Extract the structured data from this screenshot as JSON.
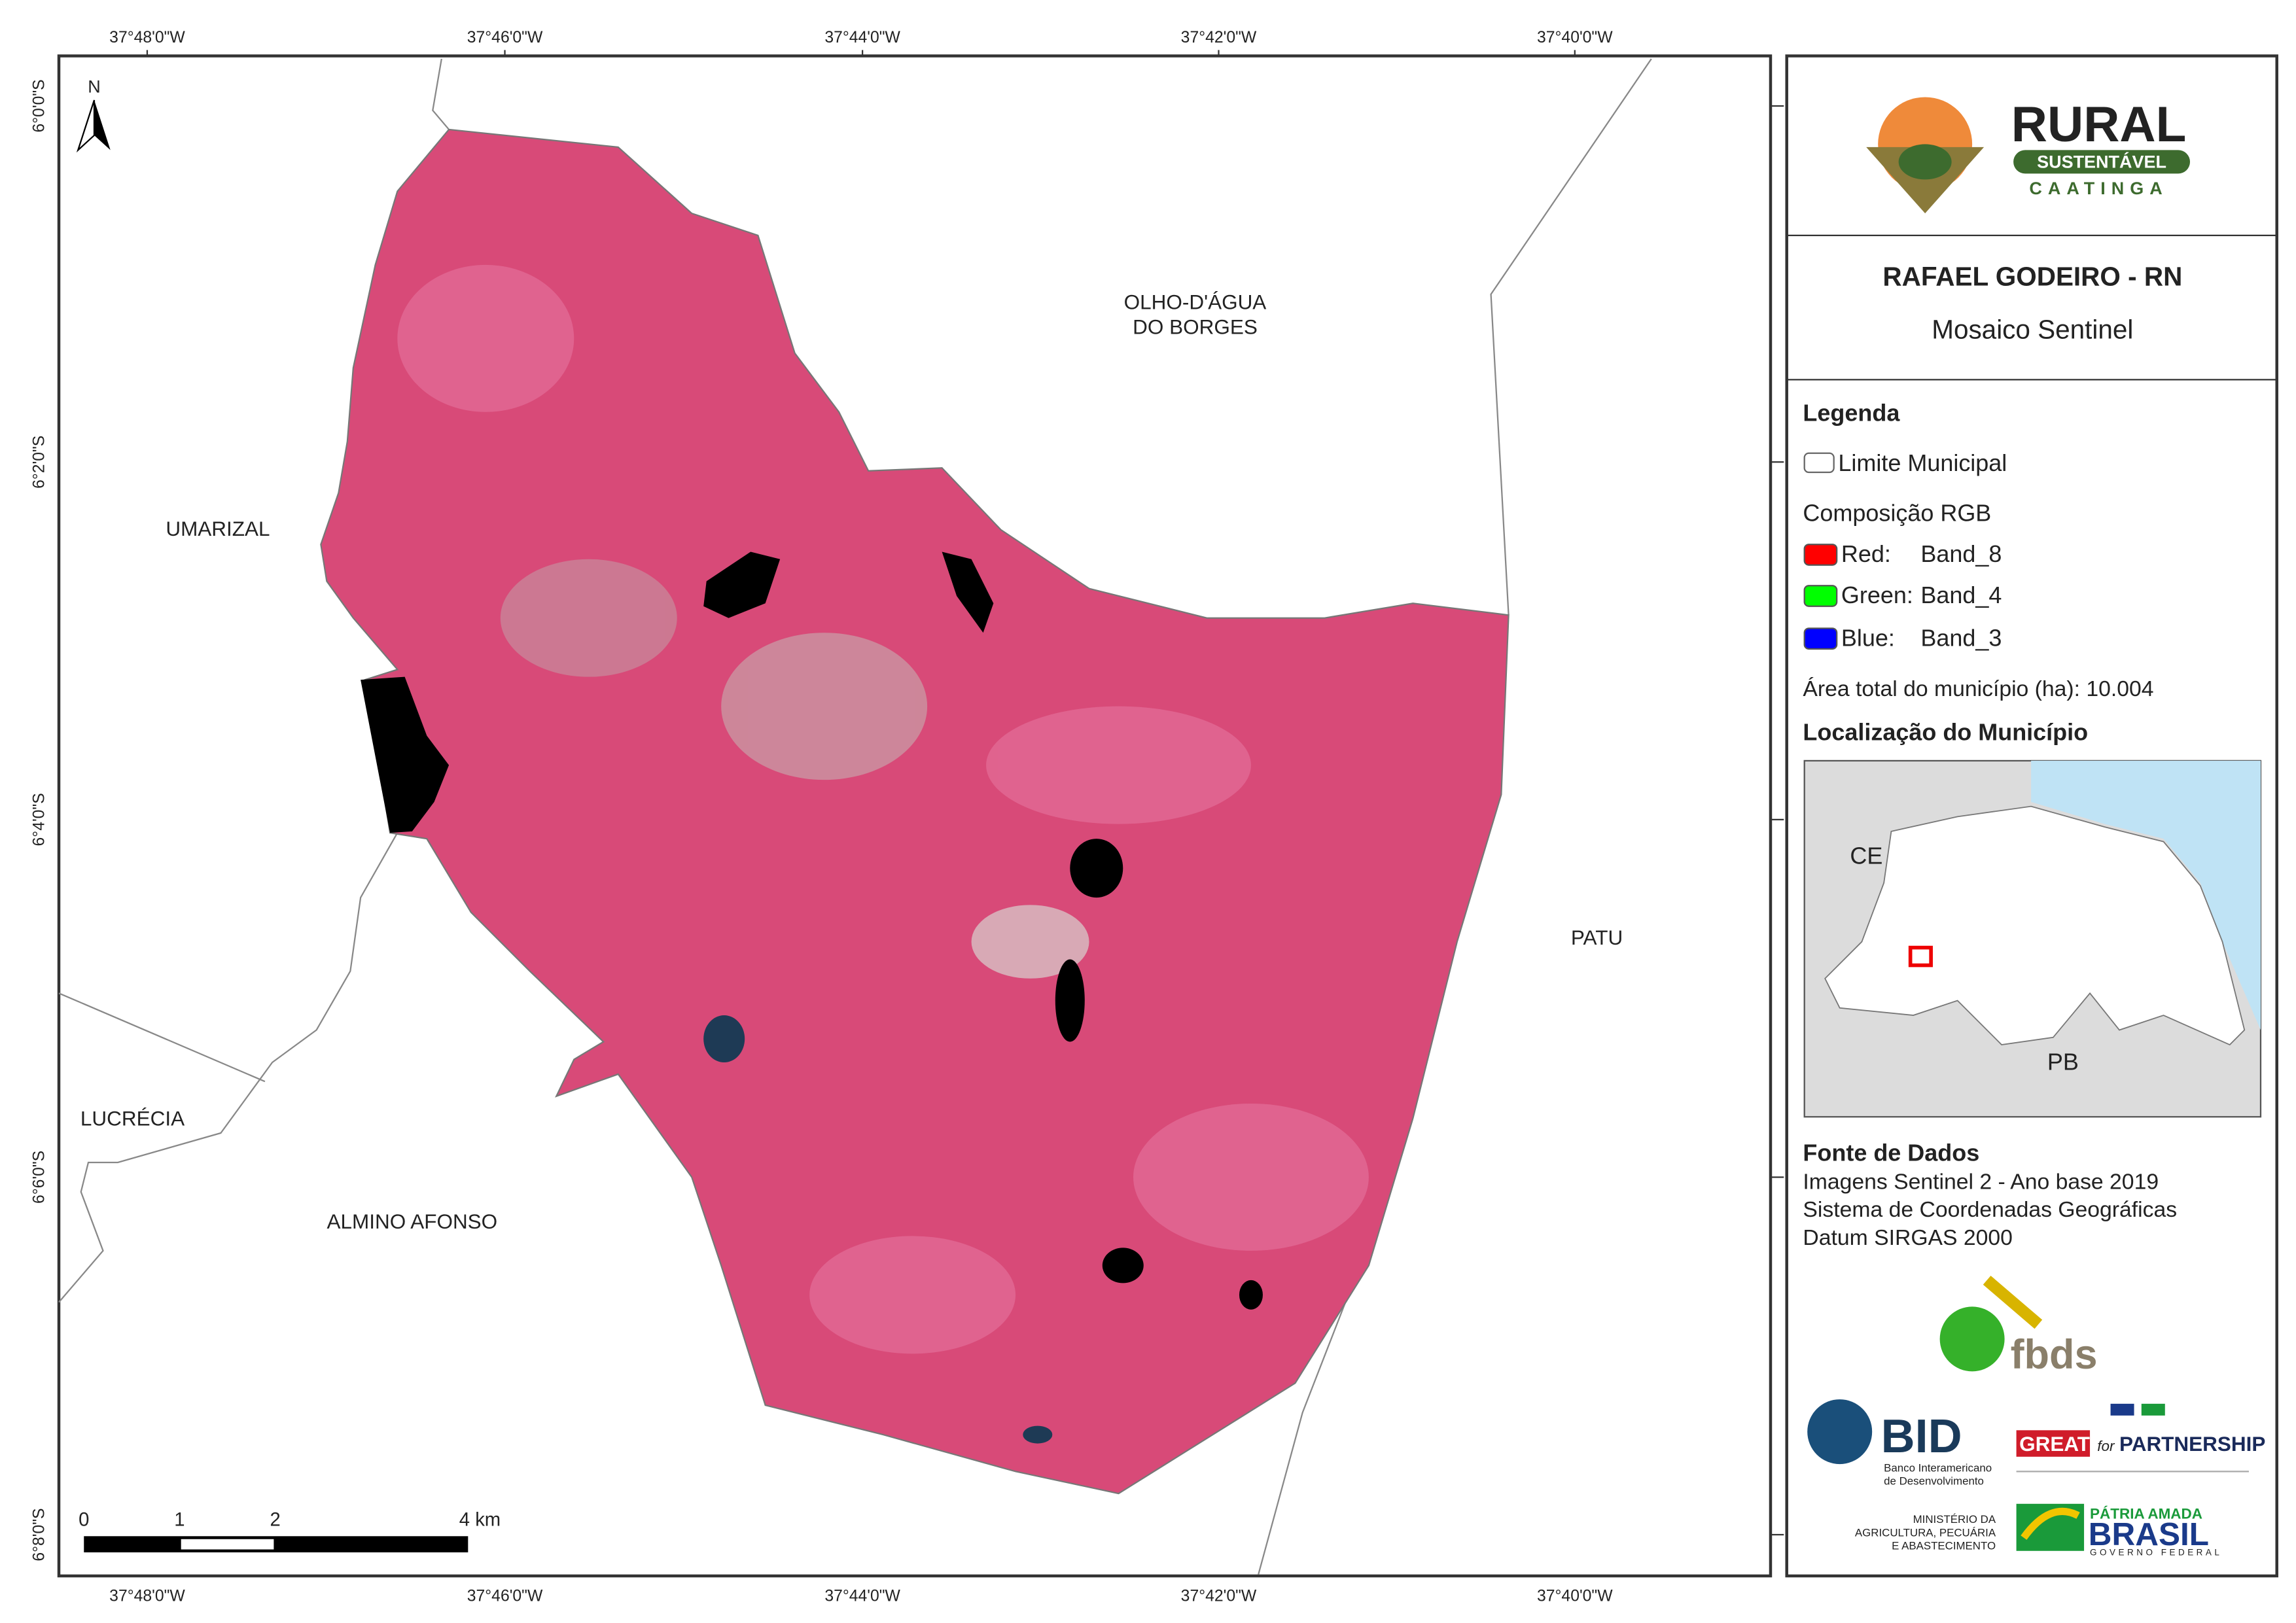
{
  "map": {
    "lon_labels": [
      "37°48'0\"W",
      "37°46'0\"W",
      "37°44'0\"W",
      "37°42'0\"W",
      "37°40'0\"W"
    ],
    "lat_labels": [
      "6°0'0\"S",
      "6°2'0\"S",
      "6°4'0\"S",
      "6°6'0\"S",
      "6°8'0\"S"
    ],
    "north": "N",
    "scale_labels": [
      "0",
      "1",
      "2",
      "4 km"
    ],
    "places": [
      "UMARIZAL",
      "OLHO-D'ÁGUA",
      "DO BORGES",
      "PATU",
      "LUCRÉCIA",
      "ALMINO AFONSO"
    ]
  },
  "panel": {
    "logo": {
      "title": "RURAL",
      "subtitle": "SUSTENTÁVEL",
      "region": "CAATINGA"
    },
    "title": "RAFAEL GODEIRO - RN",
    "subtitle": "Mosaico Sentinel",
    "legend": {
      "heading": "Legenda",
      "boundary": "Limite Municipal",
      "rgb_heading": "Composição RGB",
      "bands": [
        {
          "channel": "Red:",
          "band": "Band_8"
        },
        {
          "channel": "Green:",
          "band": "Band_4"
        },
        {
          "channel": "Blue:",
          "band": "Band_3"
        }
      ],
      "area": "Área total do município (ha): 10.004"
    },
    "location": {
      "heading": "Localização do Município",
      "labels": [
        "CE",
        "PB"
      ]
    },
    "sources": {
      "heading": "Fonte de Dados",
      "lines": [
        "Imagens Sentinel 2 - Ano base 2019",
        "Sistema de Coordenadas Geográficas",
        "Datum SIRGAS 2000"
      ]
    },
    "logos": {
      "fbds": "fbds",
      "bid": "BID",
      "bid_name": [
        "Banco Interamericano",
        "de Desenvolvimento"
      ],
      "great": "GREAT",
      "great_for": "for",
      "great_partner": "PARTNERSHIP",
      "ministry": [
        "MINISTÉRIO DA",
        "AGRICULTURA, PECUÁRIA",
        "E ABASTECIMENTO"
      ],
      "brasil": [
        "PÁTRIA AMADA",
        "BRASIL",
        "GOVERNO FEDERAL"
      ]
    }
  }
}
